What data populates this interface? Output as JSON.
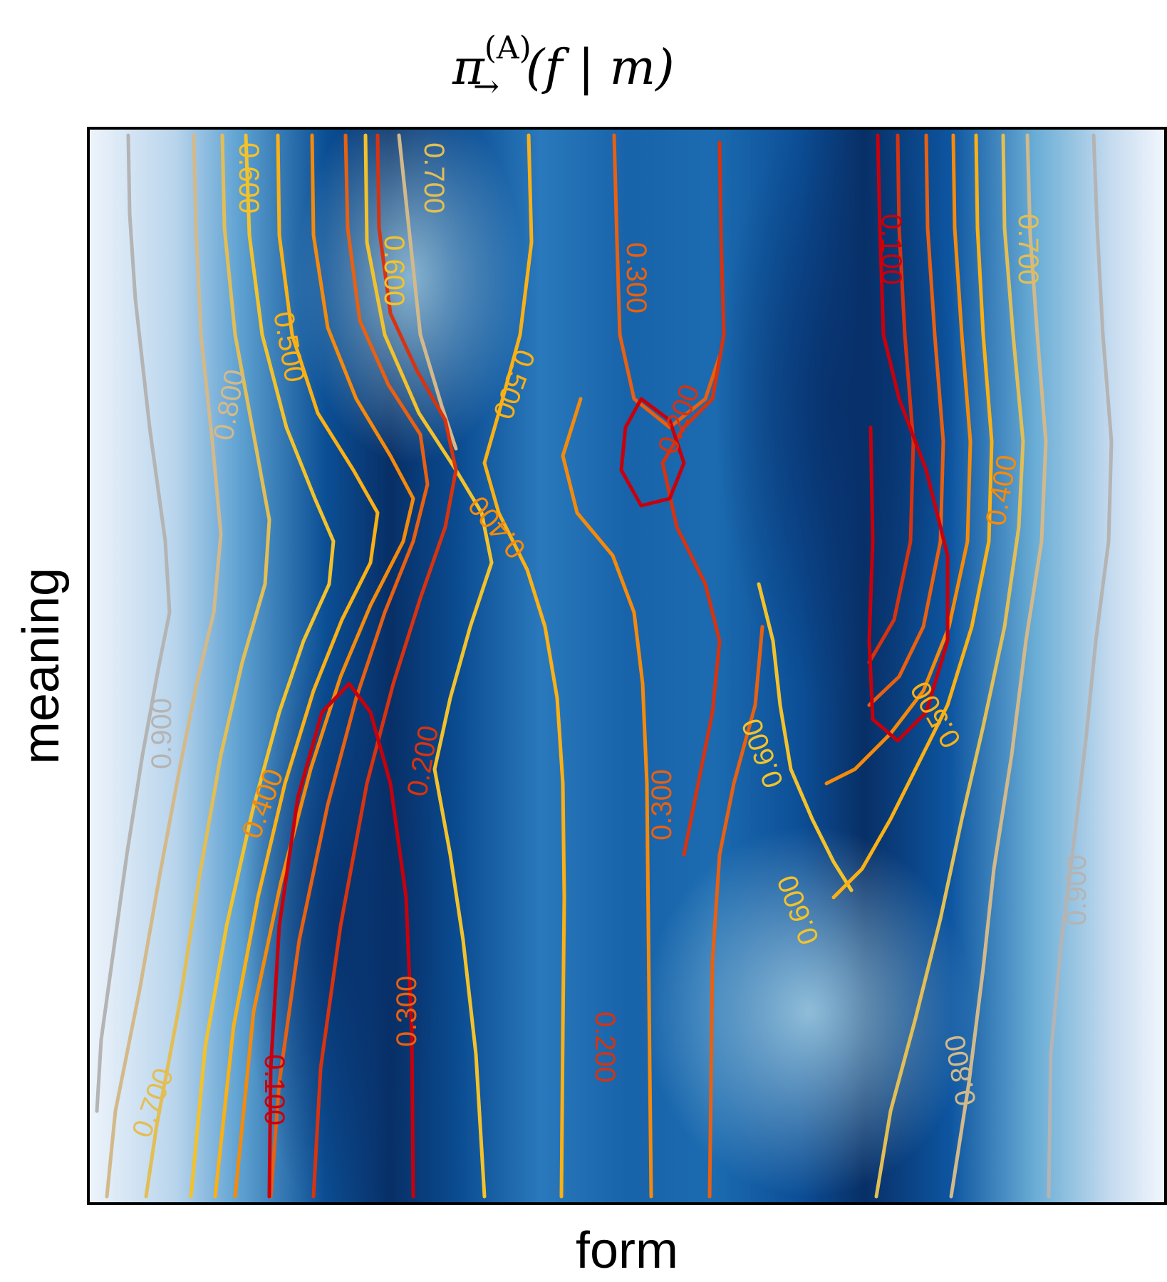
{
  "chart_data": {
    "type": "heatmap",
    "title": "π→(A)(f | m)",
    "title_parts": {
      "base": "π",
      "superscript": "(A)",
      "subscript": "→",
      "args": "(f | m)"
    },
    "xlabel": "form",
    "ylabel": "meaning",
    "colormap": "Blues (dark = low value)",
    "contour_levels": [
      "0.100",
      "0.200",
      "0.300",
      "0.400",
      "0.500",
      "0.600",
      "0.700",
      "0.800",
      "0.900"
    ],
    "contour_colors": {
      "0.100": "#c8000c",
      "0.200": "#d8330e",
      "0.300": "#e86010",
      "0.400": "#f58a0a",
      "0.500": "#fbb014",
      "0.600": "#f3c22a",
      "0.700": "#e2be55",
      "0.800": "#d3b98a",
      "0.900": "#b4b4b4"
    },
    "labels": [
      {
        "text": "0.100",
        "level": "0.100"
      },
      {
        "text": "0.100",
        "level": "0.100"
      },
      {
        "text": "0.200",
        "level": "0.200"
      },
      {
        "text": "0.200",
        "level": "0.200"
      },
      {
        "text": "0.200",
        "level": "0.200"
      },
      {
        "text": "0.300",
        "level": "0.300"
      },
      {
        "text": "0.300",
        "level": "0.300"
      },
      {
        "text": "0.300",
        "level": "0.300"
      },
      {
        "text": "0.400",
        "level": "0.400"
      },
      {
        "text": "0.400",
        "level": "0.400"
      },
      {
        "text": "0.400",
        "level": "0.400"
      },
      {
        "text": "0.500",
        "level": "0.500"
      },
      {
        "text": "0.500",
        "level": "0.500"
      },
      {
        "text": "0.500",
        "level": "0.500"
      },
      {
        "text": "0.600",
        "level": "0.600"
      },
      {
        "text": "0.600",
        "level": "0.600"
      },
      {
        "text": "0.600",
        "level": "0.600"
      },
      {
        "text": "0.600",
        "level": "0.600"
      },
      {
        "text": "0.700",
        "level": "0.700"
      },
      {
        "text": "0.700",
        "level": "0.700"
      },
      {
        "text": "0.700",
        "level": "0.700"
      },
      {
        "text": "0.800",
        "level": "0.800"
      },
      {
        "text": "0.800",
        "level": "0.800"
      },
      {
        "text": "0.900",
        "level": "0.900"
      },
      {
        "text": "0.900",
        "level": "0.900"
      }
    ],
    "grid": false,
    "legend": "none"
  }
}
